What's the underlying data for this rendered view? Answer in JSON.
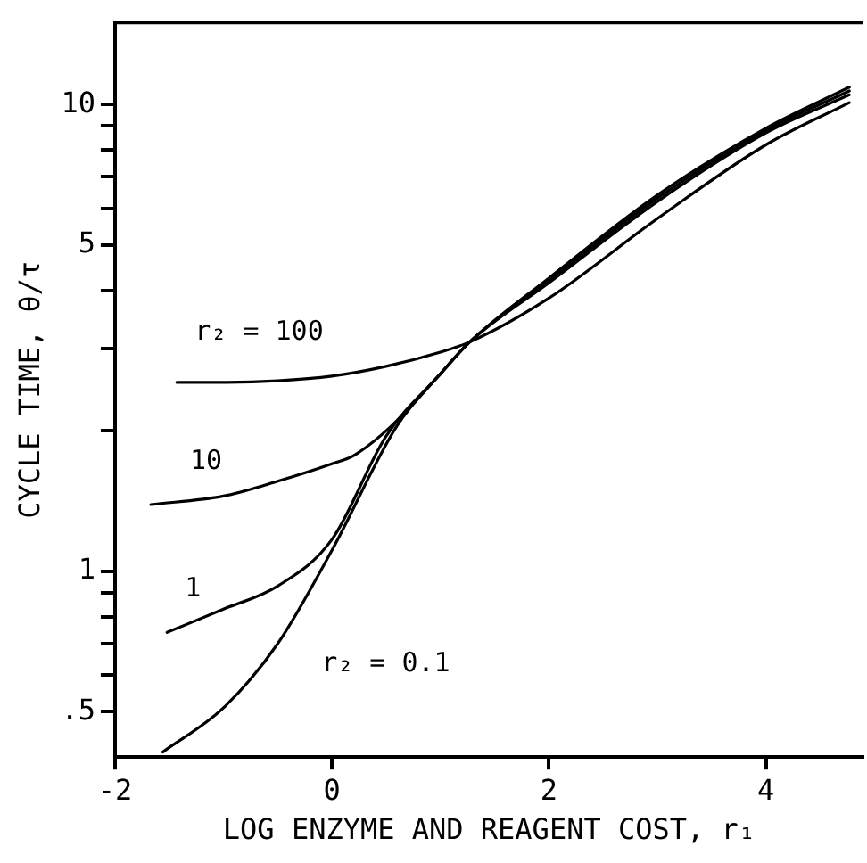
{
  "chart_data": {
    "type": "line",
    "xlabel": "LOG ENZYME AND REAGENT COST, r₁",
    "ylabel": "CYCLE TIME, θ/τ",
    "log": "y",
    "xlim": [
      -2,
      4.9
    ],
    "xticks": [
      -2,
      0,
      2,
      4
    ],
    "ylim": [
      0.4,
      15
    ],
    "yticks": [
      {
        "value": 0.5,
        "label": ".5"
      },
      {
        "value": 0.6,
        "label": null
      },
      {
        "value": 0.7,
        "label": null
      },
      {
        "value": 0.8,
        "label": null
      },
      {
        "value": 0.9,
        "label": null
      },
      1,
      {
        "value": 2,
        "label": null
      },
      {
        "value": 3,
        "label": null
      },
      {
        "value": 4,
        "label": null
      },
      5,
      {
        "value": 6,
        "label": null
      },
      {
        "value": 7,
        "label": null
      },
      {
        "value": 8,
        "label": null
      },
      {
        "value": 9,
        "label": null
      },
      10
    ],
    "grid": false,
    "legend": false,
    "marker": "none",
    "line_style": "solid",
    "series": [
      {
        "name": "r₂ = 100",
        "color": "#000000",
        "x": [
          -1.43,
          -1.0,
          -0.5,
          0.0,
          0.5,
          1.0,
          1.27,
          2.0,
          3.0,
          4.0,
          4.77
        ],
        "values": [
          2.54,
          2.54,
          2.56,
          2.62,
          2.75,
          2.95,
          3.1,
          3.85,
          5.7,
          8.2,
          10.1
        ]
      },
      {
        "name": "10",
        "color": "#000000",
        "x": [
          -1.67,
          -1.0,
          -0.5,
          0.0,
          0.2,
          0.55,
          1.0,
          1.27,
          2.0,
          3.0,
          4.0,
          4.77
        ],
        "values": [
          1.39,
          1.45,
          1.56,
          1.7,
          1.77,
          2.05,
          2.65,
          3.1,
          4.15,
          6.2,
          8.7,
          10.5
        ]
      },
      {
        "name": "1",
        "color": "#000000",
        "x": [
          -1.52,
          -1.0,
          -0.5,
          0.0,
          0.5,
          1.0,
          1.27,
          2.0,
          3.0,
          4.0,
          4.77
        ],
        "values": [
          0.74,
          0.83,
          0.93,
          1.17,
          1.95,
          2.65,
          3.1,
          4.2,
          6.3,
          8.8,
          10.7
        ]
      },
      {
        "name": "r₂ = 0.1",
        "color": "#000000",
        "x": [
          -1.56,
          -1.0,
          -0.5,
          0.0,
          0.6,
          1.0,
          1.27,
          2.0,
          3.0,
          4.0,
          4.77
        ],
        "values": [
          0.41,
          0.51,
          0.7,
          1.11,
          2.05,
          2.65,
          3.1,
          4.25,
          6.4,
          8.9,
          10.9
        ]
      }
    ]
  }
}
